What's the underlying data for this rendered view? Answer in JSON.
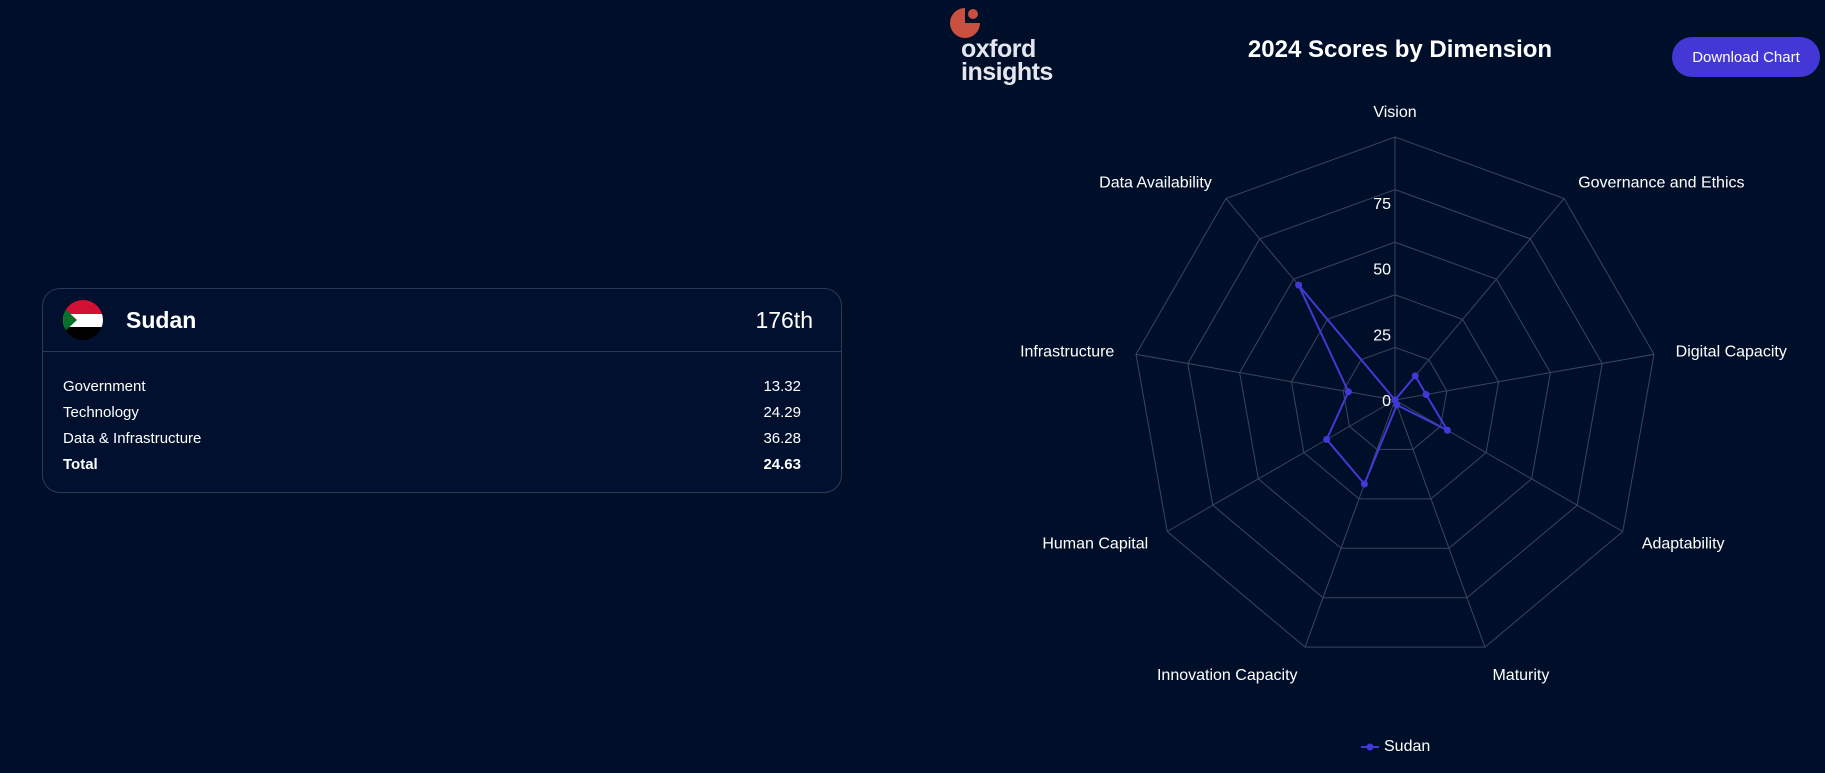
{
  "card": {
    "country": "Sudan",
    "rank": "176th",
    "rows": [
      {
        "label": "Government",
        "value": "13.32"
      },
      {
        "label": "Technology",
        "value": "24.29"
      },
      {
        "label": "Data & Infrastructure",
        "value": "36.28"
      },
      {
        "label": "Total",
        "value": "24.63"
      }
    ],
    "flag_colors": {
      "red": "#d21034",
      "white": "#ffffff",
      "black": "#000000",
      "green": "#007229"
    }
  },
  "logo": {
    "line1": "oxford",
    "line2": "insights",
    "mark_color": "#c9503e"
  },
  "download_label": "Download Chart",
  "colors": {
    "background": "#000f29",
    "series": "#4338d6",
    "grid": "#3a4560",
    "button": "#4338d6"
  },
  "chart_data": {
    "type": "radar",
    "title": "2024 Scores by Dimension",
    "axes": [
      "Vision",
      "Governance and Ethics",
      "Digital Capacity",
      "Adaptability",
      "Maturity",
      "Innovation Capacity",
      "Human Capital",
      "Infrastructure",
      "Data Availability"
    ],
    "range": [
      0,
      100
    ],
    "ticks": [
      0,
      25,
      50,
      75
    ],
    "series": [
      {
        "name": "Sudan",
        "values": [
          0,
          12,
          12,
          23,
          2,
          34,
          30,
          18,
          57
        ]
      }
    ],
    "legend": "bottom-center"
  }
}
